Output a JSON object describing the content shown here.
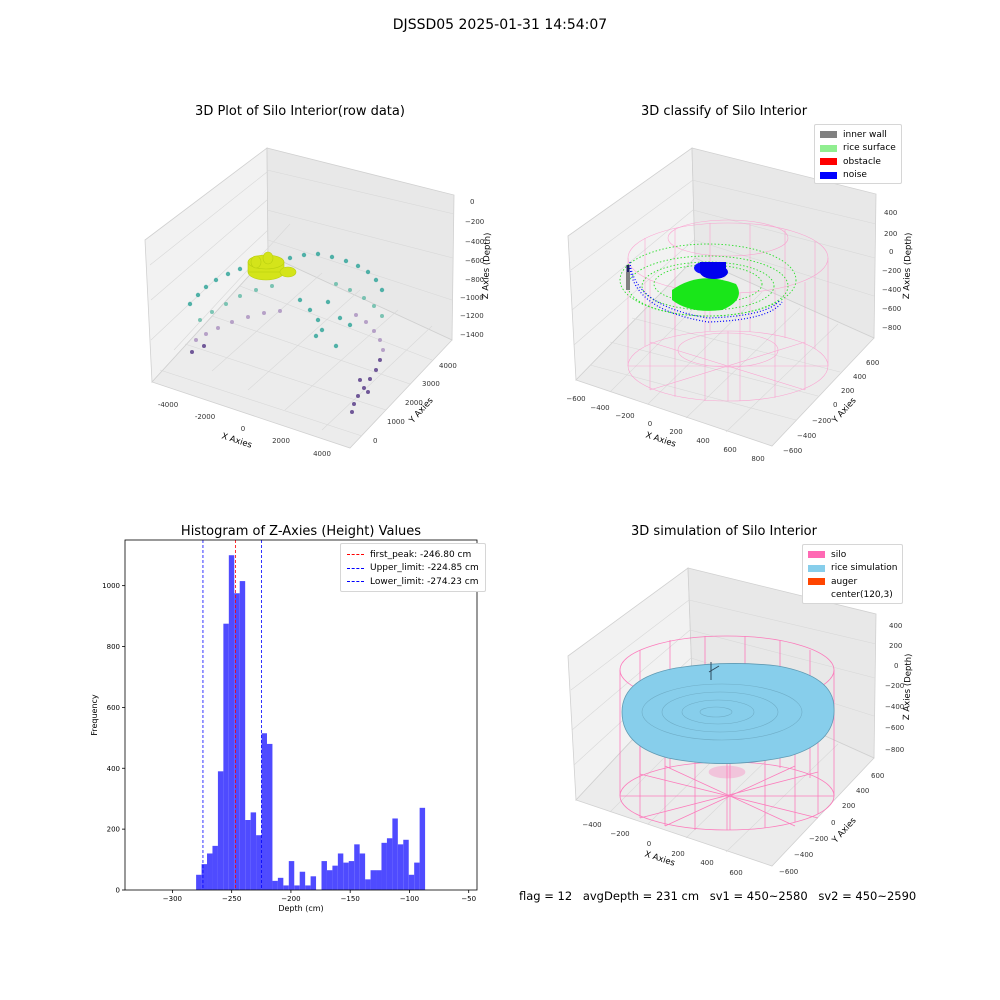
{
  "figure": {
    "suptitle": "DJSSD05 2025-01-31 14:54:07"
  },
  "status_line": {
    "flag": "flag = 12",
    "avg_depth": "avgDepth = 231 cm",
    "sv1": "sv1 = 450~2580",
    "sv2": "sv2 = 450~2590"
  },
  "colors": {
    "histogram_bar": "#4f4bff",
    "inner_wall": "#808080",
    "rice_surface": "#90ee90",
    "obstacle": "#ff0000",
    "noise": "#0000ff",
    "silo": "#ff69b4",
    "rice_simulation": "#87ceeb",
    "auger": "#ff4500"
  },
  "chart_data": [
    {
      "id": "raw3d",
      "type": "scatter",
      "title": "3D Plot of Silo Interior(row data)",
      "xlabel": "X Axies",
      "ylabel": "Y Axies",
      "zlabel": "Z Axies (Depth)",
      "x_ticks": [
        "-4000",
        "-2000",
        "0",
        "2000",
        "4000"
      ],
      "y_ticks": [
        "0",
        "1000",
        "2000",
        "3000",
        "4000"
      ],
      "z_ticks": [
        "0",
        "−200",
        "−400",
        "−600",
        "−800",
        "−1000",
        "−1200",
        "−1400"
      ]
    },
    {
      "id": "classify3d",
      "type": "scatter",
      "title": "3D classify of Silo Interior",
      "xlabel": "X Axies",
      "ylabel": "Y Axies",
      "zlabel": "Z Axies (Depth)",
      "x_ticks": [
        "−600",
        "−400",
        "−200",
        "0",
        "200",
        "400",
        "600",
        "800"
      ],
      "y_ticks": [
        "−600",
        "−400",
        "−200",
        "0",
        "200",
        "400",
        "600"
      ],
      "z_ticks": [
        "400",
        "200",
        "0",
        "−200",
        "−400",
        "−600",
        "−800"
      ],
      "legend": [
        "inner wall",
        "rice surface",
        "obstacle",
        "noise"
      ]
    },
    {
      "id": "histogram",
      "type": "bar",
      "title": "Histogram of Z-Axies (Height) Values",
      "xlabel": "Depth (cm)",
      "ylabel": "Frequency",
      "xlim": [
        -340,
        -43
      ],
      "ylim": [
        0,
        1150
      ],
      "x_ticks": [
        -300,
        -250,
        -200,
        -150,
        -100,
        -50
      ],
      "y_ticks": [
        0,
        200,
        400,
        600,
        800,
        1000
      ],
      "bin_start": -280,
      "bin_width": 4.6,
      "values": [
        50,
        85,
        120,
        145,
        390,
        875,
        1100,
        975,
        1015,
        230,
        255,
        180,
        515,
        480,
        30,
        40,
        15,
        95,
        15,
        60,
        15,
        45,
        0,
        95,
        65,
        80,
        120,
        90,
        95,
        150,
        120,
        35,
        65,
        65,
        155,
        170,
        235,
        150,
        165,
        50,
        90,
        270
      ],
      "vlines": [
        {
          "label": "first_peak: -246.80 cm",
          "value": -246.8,
          "color": "#ff0000"
        },
        {
          "label": "Upper_limit: -224.85 cm",
          "value": -224.85,
          "color": "#0000ff"
        },
        {
          "label": "Lower_limit: -274.23 cm",
          "value": -274.23,
          "color": "#0000ff"
        }
      ]
    },
    {
      "id": "simulation3d",
      "type": "area",
      "title": "3D simulation of Silo Interior",
      "xlabel": "X Axies",
      "ylabel": "Y Axies",
      "zlabel": "Z Axies (Depth)",
      "x_ticks": [
        "−400",
        "−200",
        "0",
        "200",
        "400",
        "600"
      ],
      "y_ticks": [
        "−600",
        "−400",
        "−200",
        "0",
        "200",
        "400",
        "600"
      ],
      "z_ticks": [
        "400",
        "200",
        "0",
        "−200",
        "−400",
        "−600",
        "−800"
      ],
      "legend": [
        "silo",
        "rice simulation",
        "auger",
        "center(120,3)"
      ]
    }
  ]
}
